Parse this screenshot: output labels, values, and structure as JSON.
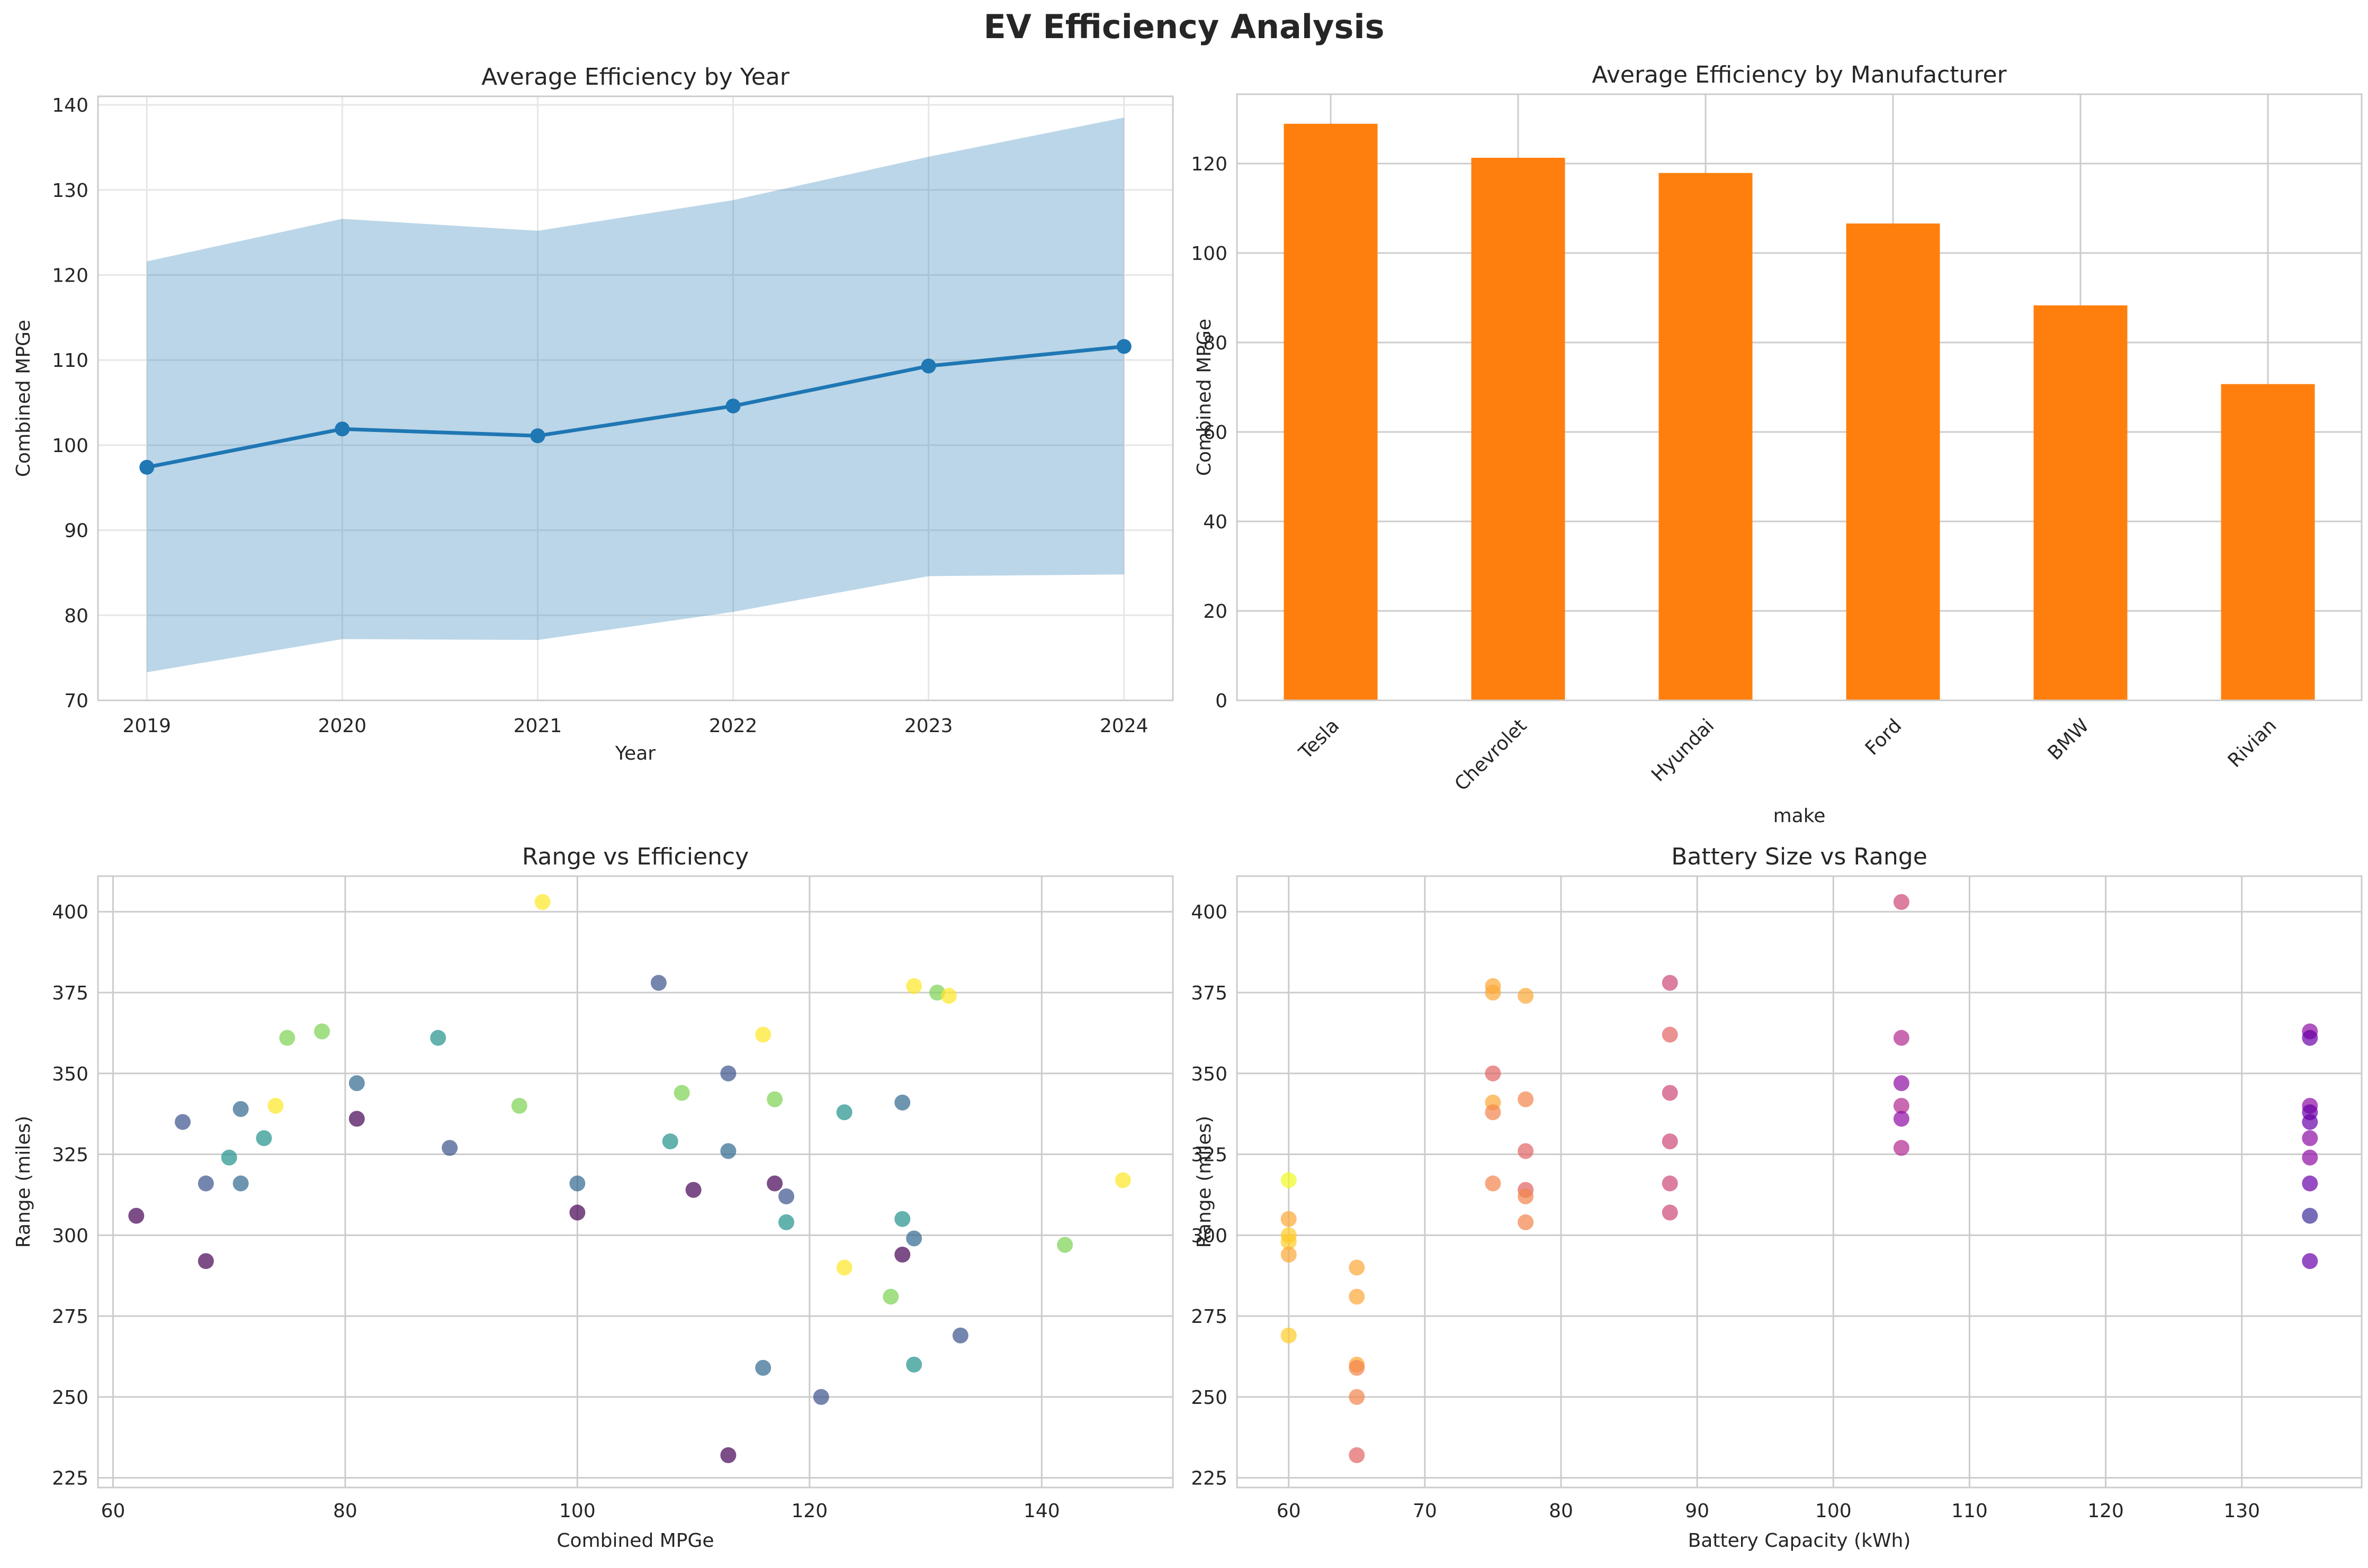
{
  "figure": {
    "suptitle": "EV Efficiency Analysis"
  },
  "colors": {
    "line": "#1f77b4",
    "band": "#1f77b4",
    "bar": "#ff7f0e",
    "grid": "#cccccc",
    "grid_light": "#e6e6e6",
    "spine": "#cccccc"
  },
  "chart_data": [
    {
      "id": "year",
      "type": "line",
      "title": "Average Efficiency by Year",
      "xlabel": "Year",
      "ylabel": "Combined MPGe",
      "x": [
        2019,
        2020,
        2021,
        2022,
        2023,
        2024
      ],
      "xtick_labels": [
        "2019",
        "2020",
        "2021",
        "2022",
        "2023",
        "2024"
      ],
      "xlim": [
        2018.75,
        2024.25
      ],
      "ylim": [
        70,
        141
      ],
      "yticks": [
        70,
        80,
        90,
        100,
        110,
        120,
        130,
        140
      ],
      "grid": true,
      "series": [
        {
          "values": [
            97.4,
            101.9,
            101.1,
            104.6,
            109.3,
            111.6
          ]
        }
      ],
      "band": {
        "lower": [
          73.3,
          77.2,
          77.1,
          80.4,
          84.6,
          84.8
        ],
        "upper": [
          121.6,
          126.6,
          125.2,
          128.8,
          133.9,
          138.5
        ]
      }
    },
    {
      "id": "make",
      "type": "bar",
      "title": "Average Efficiency by Manufacturer",
      "xlabel": "make",
      "ylabel": "Combined MPGe",
      "categories": [
        "Tesla",
        "Chevrolet",
        "Hyundai",
        "Ford",
        "BMW",
        "Rivian"
      ],
      "values": [
        128.9,
        121.3,
        117.9,
        106.6,
        88.3,
        70.7
      ],
      "ylim": [
        0,
        135.5
      ],
      "yticks": [
        0,
        20,
        40,
        60,
        80,
        100,
        120
      ],
      "grid": true
    },
    {
      "id": "range_eff",
      "type": "scatter",
      "title": "Range vs Efficiency",
      "xlabel": "Combined MPGe",
      "ylabel": "Range (miles)",
      "xlim": [
        58.7,
        151.3
      ],
      "ylim": [
        222,
        411
      ],
      "xticks": [
        60,
        80,
        100,
        120,
        140
      ],
      "yticks": [
        225,
        250,
        275,
        300,
        325,
        350,
        375,
        400
      ],
      "grid": true,
      "points": [
        [
          62,
          306,
          "#440154"
        ],
        [
          66,
          335,
          "#3b528b"
        ],
        [
          68,
          316,
          "#3b528b"
        ],
        [
          68,
          292,
          "#440154"
        ],
        [
          70,
          324,
          "#21918c"
        ],
        [
          71,
          339,
          "#31688e"
        ],
        [
          71,
          316,
          "#31688e"
        ],
        [
          73,
          330,
          "#21918c"
        ],
        [
          74,
          340,
          "#fde725"
        ],
        [
          75,
          361,
          "#7ad151"
        ],
        [
          78,
          363,
          "#7ad151"
        ],
        [
          81,
          347,
          "#31688e"
        ],
        [
          81,
          336,
          "#440154"
        ],
        [
          88,
          361,
          "#21918c"
        ],
        [
          89,
          327,
          "#3b528b"
        ],
        [
          95,
          340,
          "#7ad151"
        ],
        [
          97,
          403,
          "#fde725"
        ],
        [
          100,
          316,
          "#31688e"
        ],
        [
          100,
          307,
          "#440154"
        ],
        [
          107,
          378,
          "#3b528b"
        ],
        [
          108,
          329,
          "#21918c"
        ],
        [
          109,
          344,
          "#7ad151"
        ],
        [
          110,
          314,
          "#440154"
        ],
        [
          113,
          350,
          "#3b528b"
        ],
        [
          113,
          326,
          "#31688e"
        ],
        [
          113,
          232,
          "#440154"
        ],
        [
          116,
          362,
          "#fde725"
        ],
        [
          116,
          259,
          "#31688e"
        ],
        [
          117,
          342,
          "#7ad151"
        ],
        [
          117,
          316,
          "#440154"
        ],
        [
          118,
          312,
          "#3b528b"
        ],
        [
          118,
          304,
          "#21918c"
        ],
        [
          121,
          250,
          "#3b528b"
        ],
        [
          123,
          338,
          "#21918c"
        ],
        [
          123,
          290,
          "#fde725"
        ],
        [
          127,
          281,
          "#7ad151"
        ],
        [
          128,
          341,
          "#31688e"
        ],
        [
          128,
          305,
          "#21918c"
        ],
        [
          128,
          294,
          "#440154"
        ],
        [
          129,
          377,
          "#fde725"
        ],
        [
          129,
          299,
          "#31688e"
        ],
        [
          129,
          260,
          "#21918c"
        ],
        [
          131,
          375,
          "#7ad151"
        ],
        [
          132,
          374,
          "#fde725"
        ],
        [
          133,
          269,
          "#3b528b"
        ],
        [
          142,
          297,
          "#7ad151"
        ],
        [
          147,
          317,
          "#fde725"
        ]
      ]
    },
    {
      "id": "battery",
      "type": "scatter",
      "title": "Battery Size vs Range",
      "xlabel": "Battery Capacity (kWh)",
      "ylabel": "Range (miles)",
      "xlim": [
        56.2,
        138.8
      ],
      "ylim": [
        222,
        411
      ],
      "xticks": [
        60,
        70,
        80,
        90,
        100,
        110,
        120,
        130
      ],
      "yticks": [
        225,
        250,
        275,
        300,
        325,
        350,
        375,
        400
      ],
      "grid": true,
      "points": [
        [
          60,
          317,
          "#f0f921"
        ],
        [
          60,
          305,
          "#fca636"
        ],
        [
          60,
          300,
          "#fdca26"
        ],
        [
          60,
          298,
          "#fdca26"
        ],
        [
          60,
          294,
          "#fca636"
        ],
        [
          60,
          269,
          "#fdca26"
        ],
        [
          65,
          290,
          "#fca636"
        ],
        [
          65,
          281,
          "#fca636"
        ],
        [
          65,
          260,
          "#fca636"
        ],
        [
          65,
          259,
          "#f2844b"
        ],
        [
          65,
          250,
          "#f2844b"
        ],
        [
          65,
          232,
          "#e16462"
        ],
        [
          75,
          377,
          "#fca636"
        ],
        [
          75,
          375,
          "#fca636"
        ],
        [
          75,
          350,
          "#e16462"
        ],
        [
          75,
          341,
          "#fca636"
        ],
        [
          75,
          338,
          "#f2844b"
        ],
        [
          75,
          316,
          "#f2844b"
        ],
        [
          77.4,
          374,
          "#fca636"
        ],
        [
          77.4,
          342,
          "#f2844b"
        ],
        [
          77.4,
          326,
          "#e16462"
        ],
        [
          77.4,
          314,
          "#e16462"
        ],
        [
          77.4,
          312,
          "#f2844b"
        ],
        [
          77.4,
          304,
          "#f2844b"
        ],
        [
          88,
          378,
          "#cc4778"
        ],
        [
          88,
          362,
          "#e16462"
        ],
        [
          88,
          344,
          "#cc4778"
        ],
        [
          88,
          329,
          "#cc4778"
        ],
        [
          88,
          316,
          "#cc4778"
        ],
        [
          88,
          307,
          "#cc4778"
        ],
        [
          105,
          403,
          "#cc4778"
        ],
        [
          105,
          361,
          "#b12a90"
        ],
        [
          105,
          347,
          "#8f0da4"
        ],
        [
          105,
          340,
          "#b12a90"
        ],
        [
          105,
          336,
          "#8f0da4"
        ],
        [
          105,
          327,
          "#b12a90"
        ],
        [
          135,
          363,
          "#8f0da4"
        ],
        [
          135,
          361,
          "#6a00a8"
        ],
        [
          135,
          340,
          "#8f0da4"
        ],
        [
          135,
          338,
          "#6a00a8"
        ],
        [
          135,
          335,
          "#6a00a8"
        ],
        [
          135,
          330,
          "#8f0da4"
        ],
        [
          135,
          324,
          "#8f0da4"
        ],
        [
          135,
          316,
          "#6a00a8"
        ],
        [
          135,
          306,
          "#3b2f9a"
        ],
        [
          135,
          292,
          "#6a00a8"
        ]
      ]
    }
  ]
}
